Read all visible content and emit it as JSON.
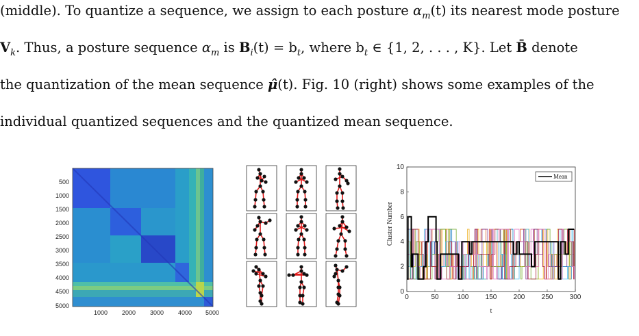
{
  "paragraph": {
    "line1_a": "(middle). To quantize a sequence, we assign to each posture ",
    "line1_sym": "α",
    "line1_sub": "m",
    "line1_arg": "(t)",
    "line1_b": " its nearest mode posture",
    "line2_V": "V",
    "line2_k": "k",
    "line2_a": ". Thus, a posture sequence ",
    "line2_alpha": "α",
    "line2_m": "m",
    "line2_b": " is ",
    "line2_B": "B",
    "line2_i": "i",
    "line2_c": "(t) = b",
    "line2_t": "t",
    "line2_d": ", where b",
    "line2_t2": "t",
    "line2_e": " ∈ {1, 2, . . . , K}. Let ",
    "line2_Bbar": "B̄",
    "line2_f": " denote",
    "line3_a": "the quantization of the mean sequence ",
    "line3_mu": "μ̂",
    "line3_b": "(t). Fig. 10 (right) shows some examples of the",
    "line4": "individual quantized sequences and the quantized mean sequence."
  },
  "heatmap": {
    "y_ticks": [
      "500",
      "1000",
      "1500",
      "2000",
      "2500",
      "3000",
      "3500",
      "4000",
      "4500",
      "5000"
    ],
    "x_ticks": [
      "1000",
      "2000",
      "3000",
      "4000",
      "5000"
    ]
  },
  "chart_data": {
    "type": "line",
    "xlabel": "t",
    "ylabel": "Cluster Number",
    "xlim": [
      0,
      300
    ],
    "ylim": [
      0,
      10
    ],
    "x_ticks": [
      "0",
      "50",
      "100",
      "150",
      "200",
      "250",
      "300"
    ],
    "y_ticks": [
      "0",
      "2",
      "4",
      "6",
      "8",
      "10"
    ],
    "legend": "top-right",
    "series": [
      {
        "name": "Mean",
        "color": "#000000",
        "points": [
          [
            0,
            1
          ],
          [
            2,
            6
          ],
          [
            6,
            6
          ],
          [
            8,
            2
          ],
          [
            10,
            3
          ],
          [
            18,
            3
          ],
          [
            20,
            1
          ],
          [
            28,
            1
          ],
          [
            30,
            2
          ],
          [
            32,
            2
          ],
          [
            34,
            4
          ],
          [
            38,
            6
          ],
          [
            50,
            6
          ],
          [
            52,
            4
          ],
          [
            54,
            1
          ],
          [
            58,
            1
          ],
          [
            60,
            3
          ],
          [
            90,
            3
          ],
          [
            92,
            1
          ],
          [
            96,
            1
          ],
          [
            98,
            4
          ],
          [
            110,
            4
          ],
          [
            112,
            3
          ],
          [
            114,
            3
          ],
          [
            116,
            4
          ],
          [
            188,
            4
          ],
          [
            190,
            3
          ],
          [
            194,
            3
          ],
          [
            196,
            4
          ],
          [
            198,
            4
          ],
          [
            200,
            3
          ],
          [
            220,
            3
          ],
          [
            222,
            2
          ],
          [
            226,
            2
          ],
          [
            228,
            4
          ],
          [
            268,
            4
          ],
          [
            270,
            1
          ],
          [
            272,
            1
          ],
          [
            274,
            4
          ],
          [
            280,
            4
          ],
          [
            282,
            3
          ],
          [
            286,
            3
          ],
          [
            288,
            5
          ],
          [
            298,
            5
          ]
        ]
      }
    ],
    "background_colors": [
      "#0072bd",
      "#d95319",
      "#edb120",
      "#7e2f8e",
      "#77ac30",
      "#4dbeee",
      "#a2142f",
      "#e377c2"
    ]
  }
}
